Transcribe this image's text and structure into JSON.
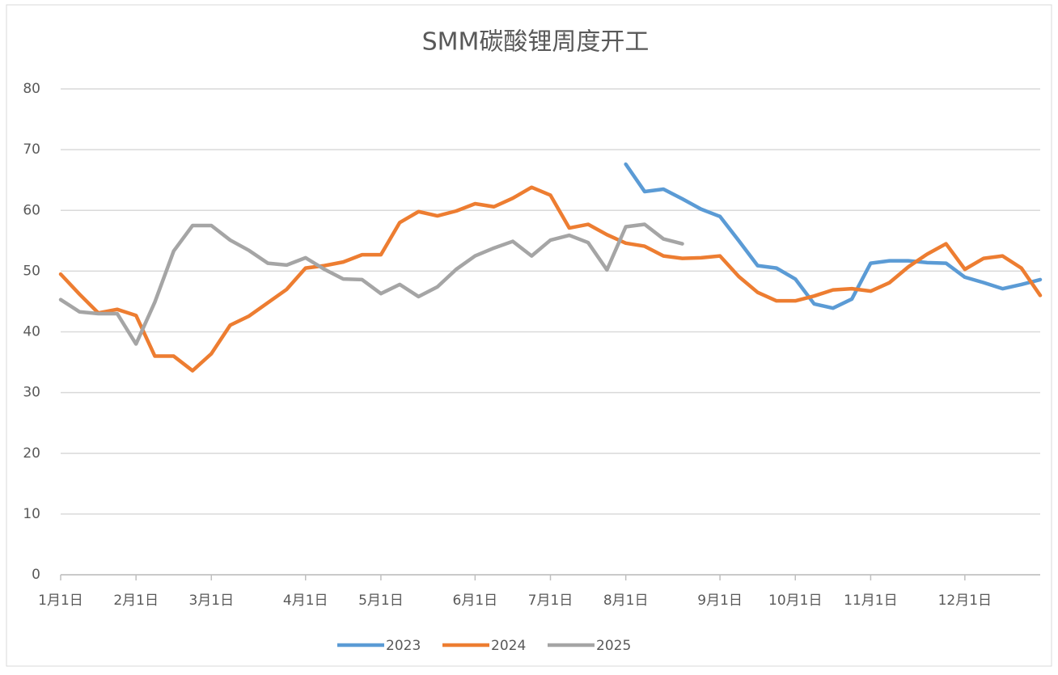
{
  "chart_data": {
    "type": "line",
    "title": "SMM碳酸锂周度开工",
    "categories": [
      "1月1日",
      null,
      null,
      null,
      "2月1日",
      null,
      null,
      null,
      "3月1日",
      null,
      null,
      null,
      null,
      "4月1日",
      null,
      null,
      null,
      "5月1日",
      null,
      null,
      null,
      null,
      "6月1日",
      null,
      null,
      null,
      "7月1日",
      null,
      null,
      null,
      "8月1日",
      null,
      null,
      null,
      null,
      "9月1日",
      null,
      null,
      null,
      "10月1日",
      null,
      null,
      null,
      "11月1日",
      null,
      null,
      null,
      null,
      "12月1日",
      null,
      null,
      null,
      null
    ],
    "series": [
      {
        "name": "2023",
        "color": "#5b9bd5",
        "values": [
          null,
          null,
          null,
          null,
          null,
          null,
          null,
          null,
          null,
          null,
          null,
          null,
          null,
          null,
          null,
          null,
          null,
          null,
          null,
          null,
          null,
          null,
          null,
          null,
          null,
          null,
          null,
          null,
          null,
          null,
          67.6,
          63.1,
          63.5,
          61.9,
          60.2,
          59,
          55,
          50.9,
          50.5,
          48.7,
          44.6,
          43.9,
          45.4,
          51.3,
          51.7,
          51.7,
          51.4,
          51.3,
          49,
          48.1,
          47.1,
          47.8,
          48.6
        ]
      },
      {
        "name": "2024",
        "color": "#ed7d31",
        "values": [
          49.5,
          46.2,
          43.1,
          43.7,
          42.7,
          36,
          36,
          33.6,
          36.4,
          41.1,
          42.6,
          44.8,
          47,
          50.5,
          50.9,
          51.5,
          52.7,
          52.7,
          58,
          59.8,
          59.1,
          59.9,
          61.1,
          60.6,
          62,
          63.8,
          62.5,
          57.1,
          57.7,
          56,
          54.6,
          54.1,
          52.5,
          52.1,
          52.2,
          52.5,
          49.1,
          46.5,
          45.1,
          45.1,
          45.9,
          46.9,
          47.1,
          46.7,
          48.1,
          50.7,
          52.8,
          54.5,
          50.3,
          52.1,
          52.5,
          50.5,
          46
        ]
      },
      {
        "name": "2025",
        "color": "#a5a5a5",
        "values": [
          45.3,
          43.3,
          43,
          43,
          38,
          44.9,
          53.3,
          57.5,
          57.5,
          55.1,
          53.4,
          51.3,
          51,
          52.2,
          50.3,
          48.7,
          48.6,
          46.3,
          47.8,
          45.8,
          47.4,
          50.3,
          52.5,
          53.8,
          54.9,
          52.5,
          55.1,
          55.9,
          54.7,
          50.2,
          57.3,
          57.7,
          55.3,
          54.5,
          null,
          null,
          null,
          null,
          null,
          null,
          null,
          null,
          null,
          null,
          null,
          null,
          null,
          null,
          null,
          null,
          null,
          null,
          null
        ]
      }
    ],
    "ylim": [
      0,
      80
    ],
    "yticks": [
      0,
      10,
      20,
      30,
      40,
      50,
      60,
      70,
      80
    ],
    "grid": true,
    "legend": "bottom"
  }
}
